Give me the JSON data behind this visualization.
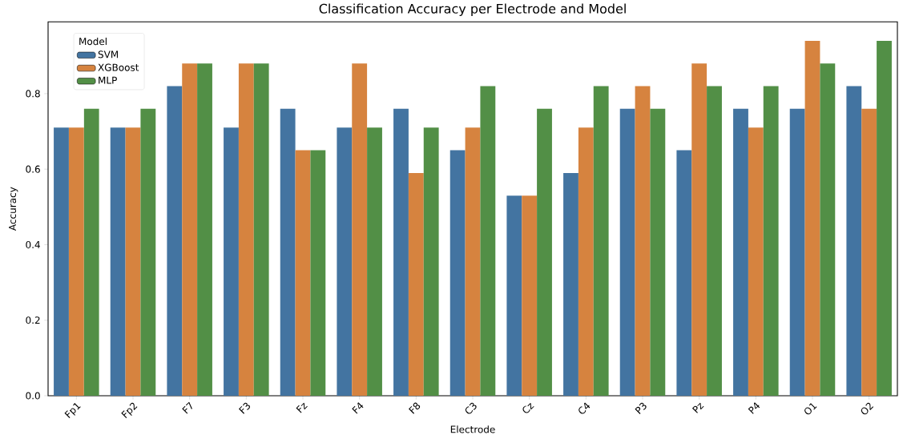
{
  "chart_data": {
    "type": "bar",
    "title": "Classification Accuracy per Electrode and Model",
    "xlabel": "Electrode",
    "ylabel": "Accuracy",
    "legend_title": "Model",
    "legend": "top left",
    "categories": [
      "Fp1",
      "Fp2",
      "F7",
      "F3",
      "Fz",
      "F4",
      "F8",
      "C3",
      "Cz",
      "C4",
      "P3",
      "Pz",
      "P4",
      "O1",
      "O2"
    ],
    "series": [
      {
        "name": "SVM",
        "color": "#4374a1",
        "values": [
          0.71,
          0.71,
          0.82,
          0.71,
          0.76,
          0.71,
          0.76,
          0.65,
          0.53,
          0.59,
          0.76,
          0.65,
          0.76,
          0.76,
          0.82
        ]
      },
      {
        "name": "XGBoost",
        "color": "#d6833f",
        "values": [
          0.71,
          0.71,
          0.88,
          0.88,
          0.65,
          0.88,
          0.59,
          0.71,
          0.53,
          0.71,
          0.82,
          0.88,
          0.71,
          0.94,
          0.76
        ]
      },
      {
        "name": "MLP",
        "color": "#528f46",
        "values": [
          0.76,
          0.76,
          0.88,
          0.88,
          0.65,
          0.71,
          0.71,
          0.82,
          0.76,
          0.82,
          0.76,
          0.82,
          0.82,
          0.88,
          0.94
        ]
      }
    ],
    "ylim": [
      0,
      0.99
    ],
    "yticks": [
      {
        "value": 0,
        "label": "0.0"
      },
      {
        "value": 0.2,
        "label": "0.2"
      },
      {
        "value": 0.4,
        "label": "0.4"
      },
      {
        "value": 0.6,
        "label": "0.6"
      },
      {
        "value": 0.8,
        "label": "0.8"
      }
    ],
    "grid": false
  }
}
